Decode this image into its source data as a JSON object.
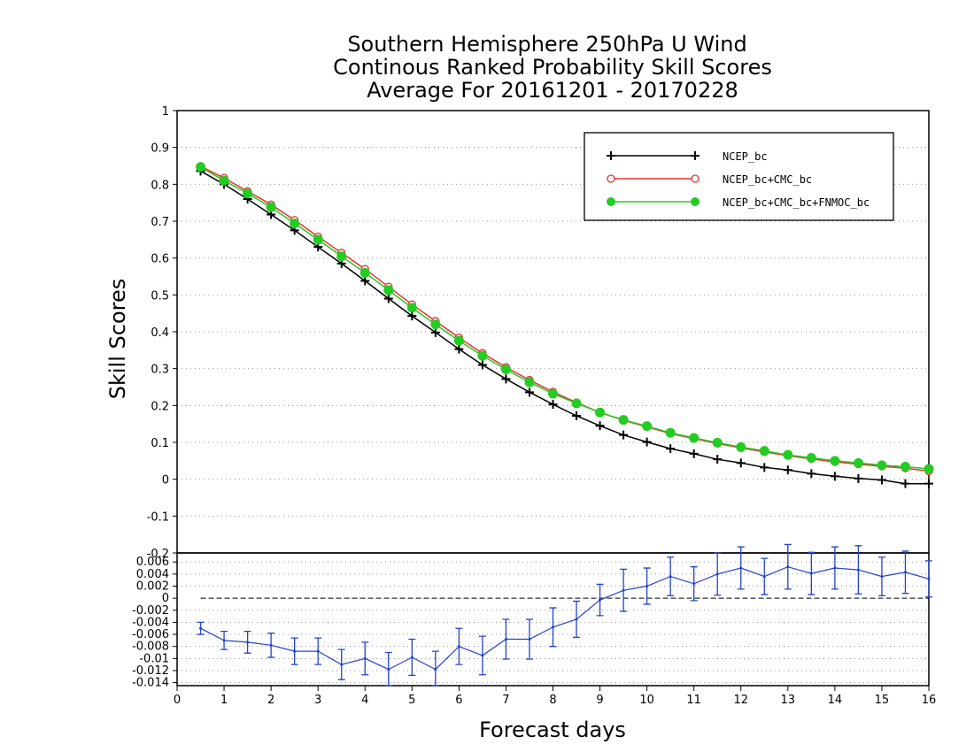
{
  "chart_data": [
    {
      "type": "line",
      "title_lines": [
        "Southern Hemisphere 250hPa U Wind",
        "Continous Ranked Probability Skill Scores",
        "Average For 20161201 - 20170228"
      ],
      "ylabel": "Skill Scores",
      "xlabel": "Forecast days",
      "xlim": [
        0,
        16
      ],
      "ylim": [
        -0.2,
        1
      ],
      "x_ticks": [
        0,
        1,
        2,
        3,
        4,
        5,
        6,
        7,
        8,
        9,
        10,
        11,
        12,
        13,
        14,
        15,
        16
      ],
      "y_ticks": [
        -0.2,
        -0.1,
        0,
        0.1,
        0.2,
        0.3,
        0.4,
        0.5,
        0.6,
        0.7,
        0.8,
        0.9,
        1
      ],
      "y_tick_labels": [
        "-0.2",
        "-0.1",
        "0",
        "0.1",
        "0.2",
        "0.3",
        "0.4",
        "0.5",
        "0.6",
        "0.7",
        "0.8",
        "0.9",
        "1"
      ],
      "grid": true,
      "legend_position": "top-right",
      "x": [
        0.5,
        1.0,
        1.5,
        2.0,
        2.5,
        3.0,
        3.5,
        4.0,
        4.5,
        5.0,
        5.5,
        6.0,
        6.5,
        7.0,
        7.5,
        8.0,
        8.5,
        9.0,
        9.5,
        10.0,
        10.5,
        11.0,
        11.5,
        12.0,
        12.5,
        13.0,
        13.5,
        14.0,
        14.5,
        15.0,
        15.5,
        16.0
      ],
      "series": [
        {
          "name": "NCEP_bc",
          "color": "#000000",
          "marker": "plus",
          "values": [
            0.836,
            0.8,
            0.76,
            0.718,
            0.675,
            0.63,
            0.585,
            0.538,
            0.49,
            0.443,
            0.398,
            0.353,
            0.31,
            0.272,
            0.236,
            0.203,
            0.172,
            0.145,
            0.12,
            0.101,
            0.083,
            0.069,
            0.054,
            0.044,
            0.032,
            0.025,
            0.015,
            0.008,
            0.002,
            -0.002,
            -0.012,
            -0.012
          ]
        },
        {
          "name": "NCEP_bc+CMC_bc",
          "color": "#e83030",
          "marker": "open-circle",
          "values": [
            0.849,
            0.817,
            0.781,
            0.745,
            0.703,
            0.658,
            0.614,
            0.57,
            0.522,
            0.474,
            0.429,
            0.384,
            0.342,
            0.304,
            0.269,
            0.237,
            0.208,
            0.181,
            0.16,
            0.142,
            0.124,
            0.11,
            0.097,
            0.085,
            0.074,
            0.064,
            0.055,
            0.047,
            0.041,
            0.035,
            0.03,
            0.022
          ]
        },
        {
          "name": "NCEP_bc+CMC_bc+FNMOC_bc",
          "color": "#22cc22",
          "marker": "filled-circle",
          "values": [
            0.847,
            0.81,
            0.775,
            0.738,
            0.694,
            0.65,
            0.605,
            0.56,
            0.513,
            0.465,
            0.42,
            0.376,
            0.335,
            0.298,
            0.263,
            0.232,
            0.206,
            0.181,
            0.161,
            0.144,
            0.126,
            0.112,
            0.099,
            0.087,
            0.077,
            0.066,
            0.058,
            0.05,
            0.044,
            0.038,
            0.034,
            0.028
          ]
        }
      ]
    },
    {
      "type": "line",
      "xlim": [
        0,
        16
      ],
      "ylim": [
        -0.0145,
        0.0075
      ],
      "y_ticks": [
        -0.014,
        -0.012,
        -0.01,
        -0.008,
        -0.006,
        -0.004,
        -0.002,
        0,
        0.002,
        0.004,
        0.006
      ],
      "y_tick_labels": [
        "-0.014",
        "-0.012",
        "-0.01",
        "-0.008",
        "-0.006",
        "-0.004",
        "-0.002",
        "0",
        "0.002",
        "0.004",
        "0.006"
      ],
      "grid": true,
      "reference_line": 0,
      "x": [
        0.5,
        1.0,
        1.5,
        2.0,
        2.5,
        3.0,
        3.5,
        4.0,
        4.5,
        5.0,
        5.5,
        6.0,
        6.5,
        7.0,
        7.5,
        8.0,
        8.5,
        9.0,
        9.5,
        10.0,
        10.5,
        11.0,
        11.5,
        12.0,
        12.5,
        13.0,
        13.5,
        14.0,
        14.5,
        15.0,
        15.5,
        16.0
      ],
      "series": [
        {
          "color": "#2244cc",
          "values": [
            -0.005,
            -0.007,
            -0.0073,
            -0.0078,
            -0.0088,
            -0.0088,
            -0.011,
            -0.01,
            -0.0118,
            -0.0098,
            -0.0118,
            -0.008,
            -0.0095,
            -0.0068,
            -0.0068,
            -0.0048,
            -0.0035,
            -0.0003,
            0.0013,
            0.002,
            0.0036,
            0.0024,
            0.004,
            0.005,
            0.0036,
            0.0052,
            0.0041,
            0.005,
            0.0047,
            0.0036,
            0.0043,
            0.0032
          ],
          "error": [
            0.001,
            0.0015,
            0.0018,
            0.002,
            0.0022,
            0.0022,
            0.0025,
            0.0027,
            0.0028,
            0.003,
            0.003,
            0.003,
            0.0032,
            0.0033,
            0.0033,
            0.0032,
            0.003,
            0.0026,
            0.0035,
            0.003,
            0.0032,
            0.0028,
            0.0035,
            0.0035,
            0.003,
            0.0037,
            0.0035,
            0.0035,
            0.004,
            0.0032,
            0.0035,
            0.003
          ]
        }
      ]
    }
  ]
}
